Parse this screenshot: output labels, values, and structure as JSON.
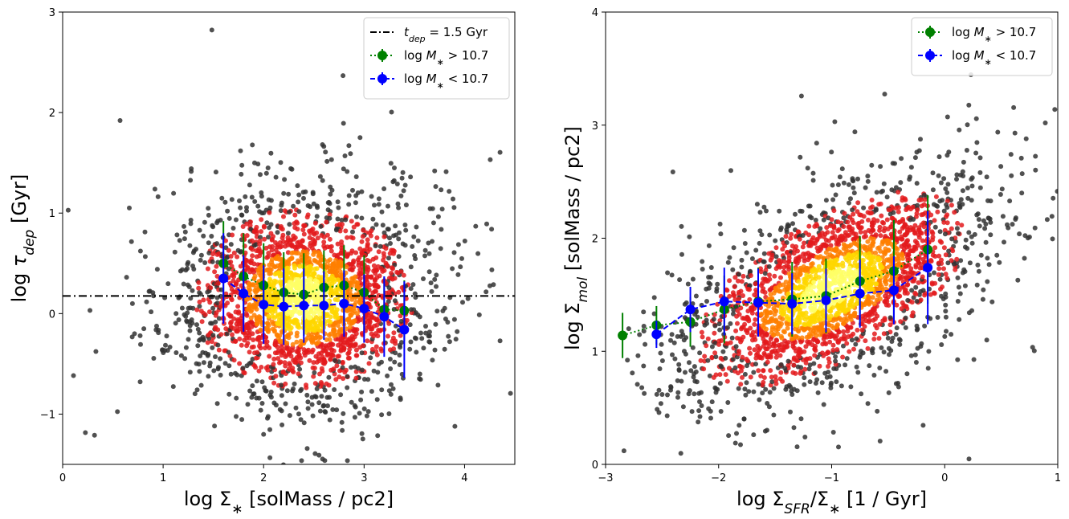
{
  "chart_data": [
    {
      "type": "scatter",
      "title": "",
      "xlabel": "log Σ* [solMass / pc2]",
      "ylabel": "log τdep [Gyr]",
      "xlim": [
        0,
        4.5
      ],
      "ylim": [
        -1.5,
        3
      ],
      "xticks": [
        0,
        1,
        2,
        3,
        4
      ],
      "yticks": [
        -1,
        0,
        1,
        2,
        3
      ],
      "xtick_labels": [
        "0",
        "1",
        "2",
        "3",
        "4"
      ],
      "ytick_labels": [
        "−1",
        "0",
        "1",
        "2",
        "3"
      ],
      "grid": false,
      "legend_position": "top-right",
      "scatter_cloud": {
        "description_values": {
          "x_center": 2.4,
          "y_center": 0.15,
          "x_spread": 0.55,
          "y_spread": 0.45
        },
        "colors": [
          "#333333",
          "#e31a1c",
          "#ff7f00",
          "#ffd700",
          "#ffff66"
        ]
      },
      "reference_line": {
        "y": 0.176,
        "label": "tdep = 1.5 Gyr",
        "style": "dash-dot",
        "color": "#000000"
      },
      "series": [
        {
          "name": "log M* > 10.7",
          "color": "#008000",
          "style": "dotted",
          "x": [
            1.6,
            1.8,
            2.0,
            2.2,
            2.4,
            2.6,
            2.8,
            3.0,
            3.2,
            3.4
          ],
          "y": [
            0.5,
            0.37,
            0.28,
            0.21,
            0.19,
            0.26,
            0.28,
            0.21,
            0.04,
            0.03
          ],
          "err": [
            0.42,
            0.43,
            0.42,
            0.4,
            0.41,
            0.37,
            0.4,
            0.37,
            0.33,
            0.3
          ]
        },
        {
          "name": "log M* < 10.7",
          "color": "#0000ff",
          "style": "dashed",
          "x": [
            1.6,
            1.8,
            2.0,
            2.2,
            2.4,
            2.6,
            2.8,
            3.0,
            3.2,
            3.4
          ],
          "y": [
            0.35,
            0.2,
            0.09,
            0.07,
            0.08,
            0.08,
            0.1,
            0.05,
            -0.03,
            -0.16
          ],
          "err": [
            0.45,
            0.38,
            0.39,
            0.38,
            0.37,
            0.34,
            0.33,
            0.34,
            0.4,
            0.48
          ]
        }
      ]
    },
    {
      "type": "scatter",
      "title": "",
      "xlabel": "log ΣSFR/Σ* [1 / Gyr]",
      "ylabel": "log Σmol [solMass / pc2]",
      "xlim": [
        -3,
        1
      ],
      "ylim": [
        0,
        4
      ],
      "xticks": [
        -3,
        -2,
        -1,
        0,
        1
      ],
      "yticks": [
        0,
        1,
        2,
        3,
        4
      ],
      "xtick_labels": [
        "−3",
        "−2",
        "−1",
        "0",
        "1"
      ],
      "ytick_labels": [
        "0",
        "1",
        "2",
        "3",
        "4"
      ],
      "grid": false,
      "legend_position": "top-right",
      "scatter_cloud": {
        "description_values": {
          "x_center": -1.0,
          "y_center": 1.55,
          "x_spread": 0.6,
          "y_spread": 0.35
        },
        "colors": [
          "#333333",
          "#e31a1c",
          "#ff7f00",
          "#ffd700",
          "#ffff66"
        ]
      },
      "series": [
        {
          "name": "log M* > 10.7",
          "color": "#008000",
          "style": "dotted",
          "x": [
            -2.85,
            -2.55,
            -2.25,
            -1.95,
            -1.65,
            -1.35,
            -1.05,
            -0.75,
            -0.45,
            -0.15
          ],
          "y": [
            1.14,
            1.23,
            1.26,
            1.37,
            1.44,
            1.46,
            1.49,
            1.62,
            1.71,
            1.9
          ],
          "err": [
            0.2,
            0.17,
            0.22,
            0.3,
            0.3,
            0.33,
            0.33,
            0.4,
            0.45,
            0.48
          ]
        },
        {
          "name": "log M* < 10.7",
          "color": "#0000ff",
          "style": "dashed",
          "x": [
            -2.55,
            -2.25,
            -1.95,
            -1.65,
            -1.35,
            -1.05,
            -0.75,
            -0.45,
            -0.15
          ],
          "y": [
            1.15,
            1.37,
            1.44,
            1.43,
            1.42,
            1.45,
            1.51,
            1.54,
            1.74
          ],
          "err": [
            0.12,
            0.2,
            0.3,
            0.3,
            0.27,
            0.28,
            0.3,
            0.3,
            0.5
          ]
        }
      ]
    }
  ]
}
